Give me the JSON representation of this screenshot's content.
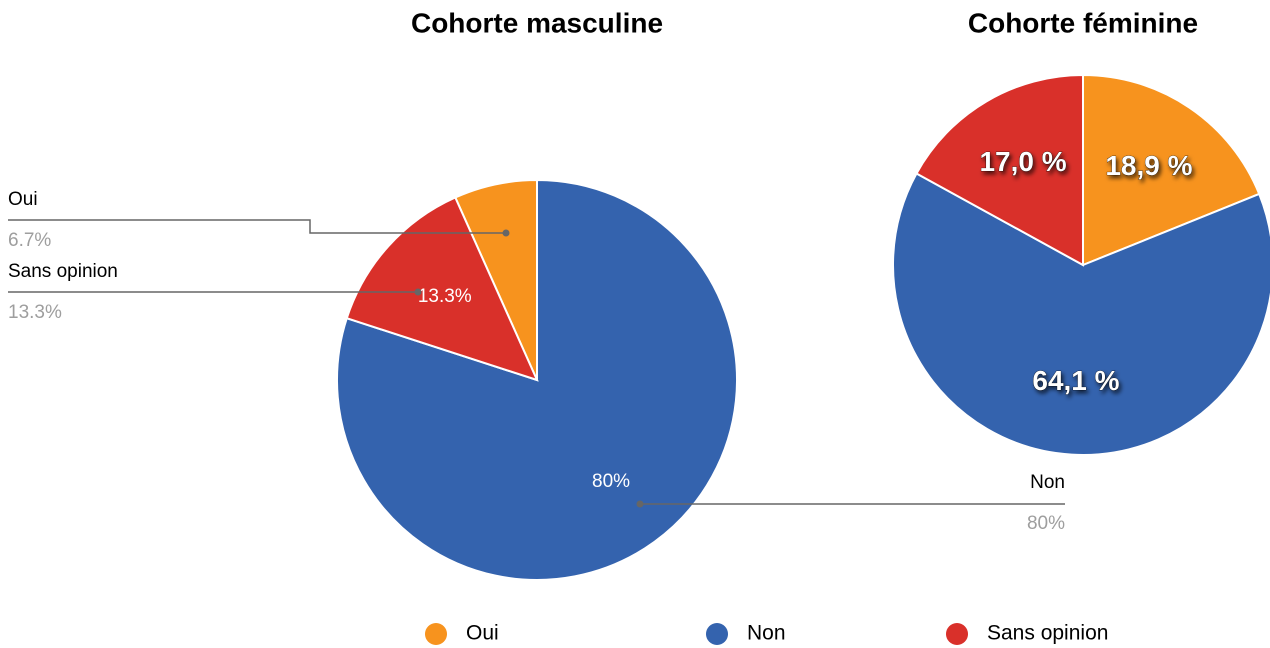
{
  "chart_data": [
    {
      "type": "pie",
      "title": "Cohorte masculine",
      "categories": [
        "Oui",
        "Non",
        "Sans opinion"
      ],
      "values": [
        6.7,
        80,
        13.3
      ],
      "value_labels": [
        "6.7%",
        "80%",
        "13.3%"
      ],
      "colors": [
        "#f7931e",
        "#3463ae",
        "#d9302a"
      ]
    },
    {
      "type": "pie",
      "title": "Cohorte féminine",
      "categories": [
        "Oui",
        "Non",
        "Sans opinion"
      ],
      "values": [
        18.9,
        64.1,
        17.0
      ],
      "value_labels": [
        "18,9 %",
        "64,1 %",
        "17,0 %"
      ],
      "colors": [
        "#f7931e",
        "#3463ae",
        "#d9302a"
      ]
    }
  ]
}
